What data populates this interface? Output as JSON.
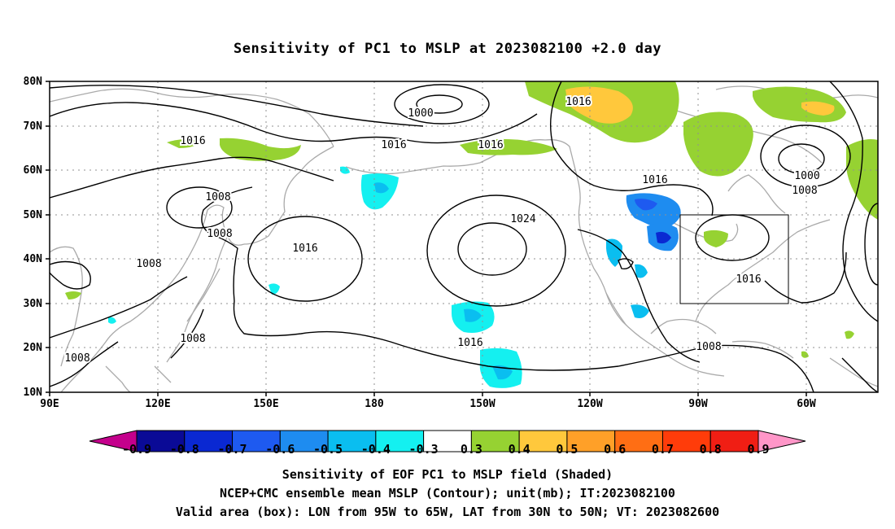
{
  "title": "Sensitivity of PC1 to MSLP at 2023082100 +2.0 day",
  "map": {
    "lat_labels": [
      "80N",
      "70N",
      "60N",
      "50N",
      "40N",
      "30N",
      "20N",
      "10N"
    ],
    "lon_labels": [
      "90E",
      "120E",
      "150E",
      "180",
      "150W",
      "120W",
      "90W",
      "60W"
    ],
    "contour_labels": [
      "1016",
      "1000",
      "1016",
      "1016",
      "1016",
      "1008",
      "1008",
      "1016",
      "1024",
      "1016",
      "1000",
      "1008",
      "1008",
      "1016",
      "1016",
      "1008",
      "1008",
      "1008"
    ],
    "valid_box": {
      "lon_min": -95,
      "lon_max": -65,
      "lat_min": 30,
      "lat_max": 50
    }
  },
  "colorbar": {
    "ticks": [
      "-0.9",
      "-0.8",
      "-0.7",
      "-0.6",
      "-0.5",
      "-0.4",
      "-0.3",
      "0.3",
      "0.4",
      "0.5",
      "0.6",
      "0.7",
      "0.8",
      "0.9"
    ],
    "colors": [
      "#c4008c",
      "#0a0a96",
      "#0a28d2",
      "#1e5af0",
      "#1e8cf0",
      "#0abef0",
      "#14f0f0",
      "#ffffff",
      "#96d232",
      "#ffc83c",
      "#ffa028",
      "#ff6e14",
      "#ff3c0a",
      "#f01e14",
      "#ff96c8"
    ]
  },
  "captions": {
    "line1": "Sensitivity of EOF PC1 to MSLP field (Shaded)",
    "line2": "NCEP+CMC ensemble mean MSLP (Contour); unit(mb); IT:2023082100",
    "line3": "Valid area (box): LON from 95W to 65W, LAT from 30N to 50N; VT: 2023082600"
  }
}
